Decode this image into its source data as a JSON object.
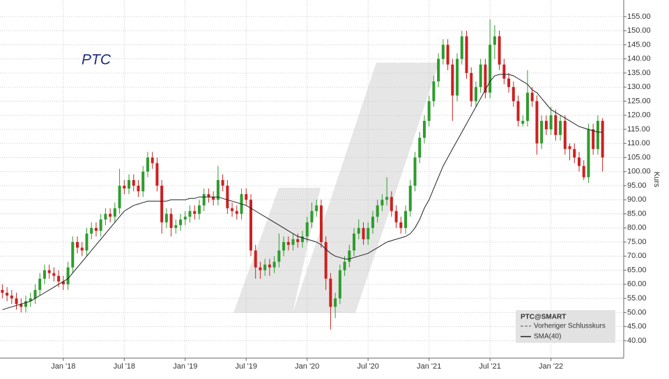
{
  "chart_data": {
    "type": "candlestick",
    "title": "PTC",
    "y_label": "Kurs",
    "reference_line_label": "Vorheriger Schlusskurs",
    "categories": [
      null,
      null,
      null,
      null,
      null,
      null,
      null,
      null,
      null,
      null,
      null,
      null,
      null,
      "Jan '18",
      null,
      null,
      null,
      null,
      null,
      null,
      null,
      null,
      null,
      null,
      null,
      null,
      "Jul '18",
      null,
      null,
      null,
      null,
      null,
      null,
      null,
      null,
      null,
      null,
      null,
      null,
      "Jan '19",
      null,
      null,
      null,
      null,
      null,
      null,
      null,
      null,
      null,
      null,
      null,
      null,
      "Jul '19",
      null,
      null,
      null,
      null,
      null,
      null,
      null,
      null,
      null,
      null,
      null,
      null,
      "Jan '20",
      null,
      null,
      null,
      null,
      null,
      null,
      null,
      null,
      null,
      null,
      null,
      null,
      "Jul '20",
      null,
      null,
      null,
      null,
      null,
      null,
      null,
      null,
      null,
      null,
      null,
      null,
      "Jan '21",
      null,
      null,
      null,
      null,
      null,
      null,
      null,
      null,
      null,
      null,
      null,
      null,
      "Jul '21",
      null,
      null,
      null,
      null,
      null,
      null,
      null,
      null,
      null,
      null,
      null,
      null,
      "Jan '22",
      null,
      null,
      null,
      null,
      null,
      null,
      null,
      null,
      null,
      null,
      null
    ],
    "series": [
      {
        "name": "PTC@SMART",
        "type": "candlestick",
        "up_color": "#2e9c2e",
        "down_color": "#cc2020",
        "open": [
          58,
          57,
          56,
          55,
          53,
          52,
          54,
          55,
          58,
          62,
          65,
          64,
          63,
          61,
          60,
          66,
          75,
          73,
          72,
          78,
          80,
          79,
          83,
          85,
          84,
          87,
          95,
          94,
          97,
          95,
          93,
          100,
          105,
          103,
          95,
          82,
          85,
          80,
          81,
          83,
          84,
          86,
          85,
          88,
          92,
          91,
          90,
          97,
          95,
          87,
          86,
          85,
          92,
          90,
          72,
          66,
          65,
          67,
          66,
          68,
          72,
          75,
          74,
          76,
          75,
          77,
          82,
          86,
          88,
          75,
          62,
          52,
          55,
          65,
          68,
          72,
          78,
          80,
          76,
          80,
          84,
          88,
          90,
          91,
          86,
          82,
          80,
          86,
          95,
          105,
          112,
          118,
          125,
          132,
          140,
          145,
          138,
          127,
          140,
          148,
          135,
          125,
          130,
          138,
          128,
          145,
          148,
          138,
          133,
          130,
          125,
          117,
          118,
          128,
          125,
          110,
          118,
          115,
          120,
          113,
          118,
          109,
          108,
          105,
          102,
          98,
          115,
          108,
          118
        ],
        "high": [
          60,
          59,
          58,
          57,
          55,
          56,
          57,
          60,
          64,
          67,
          67,
          66,
          65,
          63,
          68,
          77,
          77,
          75,
          80,
          82,
          82,
          85,
          87,
          87,
          89,
          101,
          97,
          99,
          99,
          97,
          102,
          107,
          107,
          105,
          97,
          87,
          87,
          83,
          85,
          86,
          88,
          88,
          90,
          94,
          94,
          93,
          102,
          99,
          97,
          89,
          88,
          94,
          94,
          92,
          74,
          68,
          69,
          69,
          70,
          78,
          77,
          77,
          78,
          78,
          79,
          84,
          89,
          90,
          90,
          77,
          64,
          57,
          67,
          70,
          74,
          80,
          83,
          82,
          82,
          86,
          90,
          92,
          98,
          93,
          88,
          84,
          88,
          97,
          107,
          114,
          120,
          127,
          134,
          142,
          147,
          147,
          140,
          142,
          150,
          150,
          137,
          132,
          140,
          140,
          154,
          152,
          150,
          140,
          135,
          132,
          127,
          120,
          136,
          130,
          127,
          120,
          120,
          123,
          122,
          120,
          120,
          110,
          110,
          107,
          104,
          117,
          117,
          120,
          119
        ],
        "low": [
          55,
          54,
          53,
          51,
          50,
          50,
          52,
          53,
          56,
          60,
          62,
          61,
          59,
          58,
          58,
          64,
          71,
          70,
          70,
          76,
          77,
          77,
          81,
          82,
          82,
          85,
          92,
          92,
          93,
          91,
          91,
          98,
          101,
          93,
          78,
          80,
          77,
          78,
          79,
          81,
          82,
          83,
          83,
          86,
          89,
          88,
          88,
          93,
          85,
          84,
          83,
          83,
          88,
          70,
          62,
          62,
          63,
          63,
          64,
          66,
          70,
          72,
          72,
          73,
          73,
          75,
          80,
          84,
          73,
          58,
          44,
          48,
          53,
          63,
          66,
          70,
          76,
          74,
          74,
          78,
          82,
          86,
          88,
          84,
          80,
          78,
          78,
          84,
          93,
          103,
          110,
          116,
          123,
          130,
          138,
          136,
          118,
          125,
          138,
          133,
          123,
          123,
          128,
          126,
          126,
          140,
          136,
          131,
          128,
          123,
          116,
          116,
          116,
          123,
          106,
          108,
          113,
          113,
          111,
          111,
          106,
          104,
          103,
          100,
          97,
          96,
          106,
          106,
          100
        ],
        "close": [
          57,
          56,
          55,
          53,
          52,
          54,
          55,
          58,
          62,
          65,
          64,
          63,
          61,
          60,
          66,
          75,
          73,
          72,
          78,
          80,
          79,
          83,
          85,
          84,
          87,
          95,
          94,
          97,
          95,
          93,
          100,
          105,
          103,
          95,
          82,
          85,
          80,
          81,
          83,
          84,
          86,
          85,
          88,
          92,
          91,
          90,
          97,
          95,
          87,
          86,
          85,
          92,
          90,
          72,
          66,
          65,
          67,
          66,
          68,
          72,
          75,
          74,
          76,
          75,
          77,
          82,
          86,
          88,
          75,
          62,
          52,
          55,
          65,
          68,
          72,
          78,
          80,
          76,
          80,
          84,
          88,
          90,
          91,
          86,
          82,
          80,
          86,
          95,
          105,
          112,
          118,
          125,
          132,
          140,
          145,
          138,
          127,
          140,
          148,
          135,
          125,
          130,
          138,
          128,
          145,
          148,
          138,
          133,
          130,
          125,
          118,
          118,
          128,
          125,
          110,
          118,
          115,
          120,
          113,
          118,
          108,
          108,
          105,
          102,
          98,
          115,
          108,
          118,
          105
        ]
      },
      {
        "name": "SMA(40)",
        "type": "line",
        "color": "#222222",
        "values": [
          51,
          51.5,
          52,
          52.5,
          53,
          53.5,
          54,
          55,
          56,
          57,
          58,
          59,
          60,
          61,
          62,
          64,
          66,
          68,
          70,
          72,
          74,
          76,
          78,
          80,
          82,
          84,
          86,
          87,
          88,
          88.5,
          89,
          89.5,
          89.5,
          89.5,
          89.5,
          89.5,
          90,
          90,
          90,
          90,
          90.5,
          90.5,
          91,
          91,
          91,
          91,
          91,
          90.5,
          90,
          89.5,
          89,
          88.5,
          88,
          87,
          86,
          85,
          84,
          83,
          82,
          81,
          80,
          79,
          78,
          77,
          76.5,
          76,
          75.5,
          75,
          74,
          72.5,
          71,
          70,
          69.5,
          69,
          69,
          69.5,
          70,
          70.5,
          71,
          72,
          73,
          74,
          75,
          75.5,
          76,
          76.5,
          77,
          78,
          80,
          83,
          87,
          90,
          94,
          98,
          102,
          105,
          108,
          111,
          114,
          117,
          120,
          123,
          126,
          129,
          132,
          134,
          134.5,
          134.5,
          134.5,
          134,
          133,
          132,
          131,
          129,
          128,
          126,
          124,
          122,
          121,
          120,
          119,
          118,
          117,
          116,
          115.5,
          115,
          114.5,
          114,
          114
        ]
      }
    ],
    "ylim": [
      33.8,
      160.9
    ],
    "yticks": [
      {
        "value": 40,
        "label": "40.00"
      },
      {
        "value": 45,
        "label": "45.00"
      },
      {
        "value": 50,
        "label": "50.00"
      },
      {
        "value": 55,
        "label": "55.00"
      },
      {
        "value": 60,
        "label": "60.00"
      },
      {
        "value": 65,
        "label": "65.00"
      },
      {
        "value": 70,
        "label": "70.00"
      },
      {
        "value": 75,
        "label": "75.00"
      },
      {
        "value": 80,
        "label": "80.00"
      },
      {
        "value": 85,
        "label": "85.00"
      },
      {
        "value": 90,
        "label": "90.00"
      },
      {
        "value": 95,
        "label": "95.00"
      },
      {
        "value": 100,
        "label": "100.00"
      },
      {
        "value": 105,
        "label": "105.00"
      },
      {
        "value": 110,
        "label": "110.00"
      },
      {
        "value": 115,
        "label": "115.00"
      },
      {
        "value": 120,
        "label": "120.00"
      },
      {
        "value": 125,
        "label": "125.00"
      },
      {
        "value": 130,
        "label": "130.00"
      },
      {
        "value": 135,
        "label": "135.00"
      },
      {
        "value": 140,
        "label": "140.00"
      },
      {
        "value": 145,
        "label": "145.00"
      },
      {
        "value": 150,
        "label": "150.00"
      },
      {
        "value": 155,
        "label": "155.00"
      }
    ],
    "grid": true
  }
}
